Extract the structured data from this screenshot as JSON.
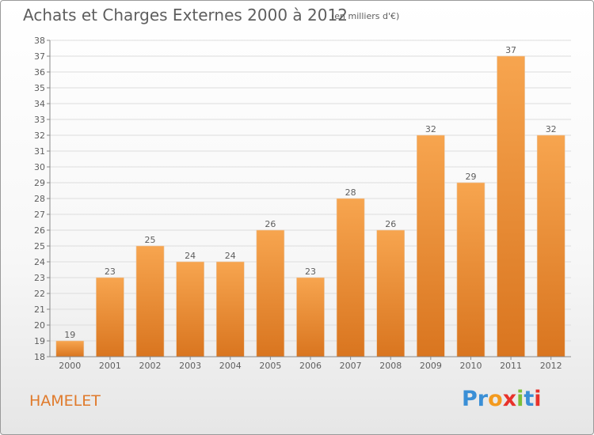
{
  "title": "Achats et Charges Externes 2000 à 2012",
  "subtitle": "(en milliers d'€)",
  "place_label": "HAMELET",
  "logo": {
    "text": "Proxiti",
    "colors": [
      "#3a8fd6",
      "#3a8fd6",
      "#f39a1e",
      "#e8322b",
      "#7cbf3a",
      "#3a8fd6",
      "#e8322b"
    ]
  },
  "colors": {
    "bar_light": "#f7a54f",
    "bar_dark": "#d9751f",
    "text": "#5e5e5e",
    "grid": "#dddddd",
    "axis": "#888888"
  },
  "chart_data": {
    "type": "bar",
    "categories": [
      "2000",
      "2001",
      "2002",
      "2003",
      "2004",
      "2005",
      "2006",
      "2007",
      "2008",
      "2009",
      "2010",
      "2011",
      "2012"
    ],
    "values": [
      19,
      23,
      25,
      24,
      24,
      26,
      23,
      28,
      26,
      32,
      29,
      37,
      32
    ],
    "ylim": [
      18,
      38
    ],
    "yticks": [
      18,
      19,
      20,
      21,
      22,
      23,
      24,
      25,
      26,
      27,
      28,
      29,
      30,
      31,
      32,
      33,
      34,
      35,
      36,
      37,
      38
    ],
    "grid": true,
    "xlabel": "",
    "ylabel": ""
  }
}
